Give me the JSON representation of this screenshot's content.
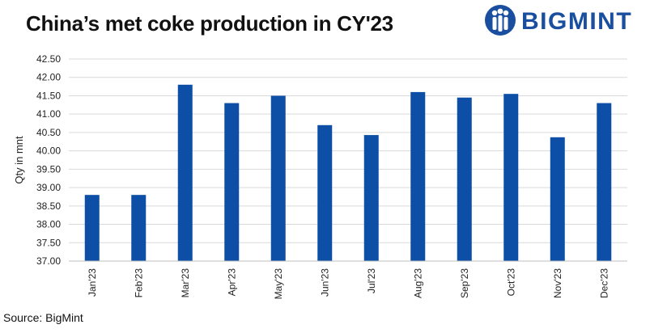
{
  "brand": {
    "name": "BIGMINT",
    "logo_icon": "people-group-icon",
    "color": "#1a4fa0"
  },
  "source": "Source: BigMint",
  "chart_data": {
    "type": "bar",
    "title": "China’s met coke production in CY'23",
    "xlabel": "",
    "ylabel": "Qty in mnt",
    "categories": [
      "Jan'23",
      "Feb'23",
      "Mar'23",
      "Apr'23",
      "May'23",
      "Jun'23",
      "Jul'23",
      "Aug'23",
      "Sep'23",
      "Oct'23",
      "Nov'23",
      "Dec'23"
    ],
    "values": [
      38.8,
      38.8,
      41.8,
      41.3,
      41.5,
      40.7,
      40.43,
      41.6,
      41.45,
      41.55,
      40.37,
      41.3
    ],
    "ylim": [
      37.0,
      42.5
    ],
    "yticks": [
      "37.00",
      "37.50",
      "38.00",
      "38.50",
      "39.00",
      "39.50",
      "40.00",
      "40.50",
      "41.00",
      "41.50",
      "42.00",
      "42.50"
    ],
    "bar_color": "#0d4ea6",
    "grid": true,
    "legend": "none"
  }
}
